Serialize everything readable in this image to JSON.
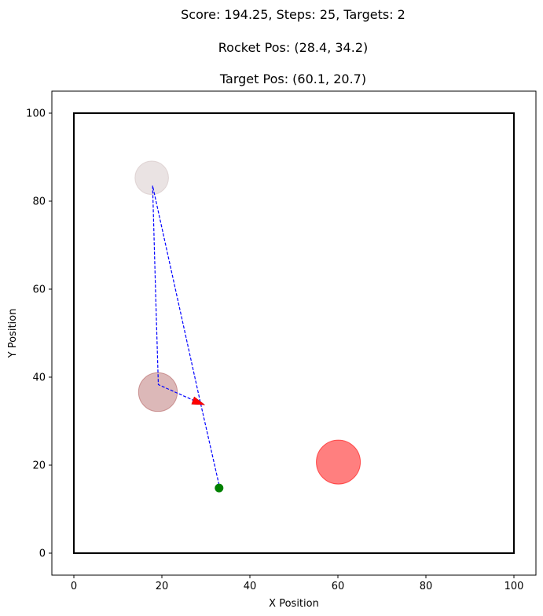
{
  "title": {
    "line1": "Score: 194.25, Steps: 25, Targets: 2",
    "line2": "Rocket Pos: (28.4, 34.2)",
    "line3": "Target Pos: (60.1, 20.7)"
  },
  "chart_data": {
    "type": "scatter",
    "xlabel": "X Position",
    "ylabel": "Y Position",
    "xlim": [
      -5,
      105
    ],
    "ylim": [
      -5,
      105
    ],
    "xticks": [
      0,
      20,
      40,
      60,
      80,
      100
    ],
    "yticks": [
      0,
      20,
      40,
      60,
      80,
      100
    ],
    "arena": {
      "x0": 0,
      "y0": 0,
      "x1": 100,
      "y1": 100,
      "color": "#000000"
    },
    "start_point": {
      "x": 33,
      "y": 14.8,
      "color": "#008000"
    },
    "trajectory": {
      "color": "#0000ff",
      "points": [
        [
          33,
          15.5
        ],
        [
          28.7,
          34.5
        ],
        [
          17.9,
          83.5
        ],
        [
          18.6,
          58
        ],
        [
          19.2,
          38.3
        ],
        [
          28.4,
          34.2
        ]
      ]
    },
    "visited_targets": [
      {
        "x": 17.7,
        "y": 85.3,
        "r": 3.8,
        "color": "#d9cccc"
      },
      {
        "x": 19.1,
        "y": 36.6,
        "r": 4.4,
        "color": "#c07d7d"
      }
    ],
    "current_target": {
      "x": 60.1,
      "y": 20.7,
      "r": 5,
      "color": "#ff0000"
    },
    "rocket": {
      "x": 28.4,
      "y": 34.2,
      "heading_deg": -20,
      "color": "#ff0000"
    }
  }
}
